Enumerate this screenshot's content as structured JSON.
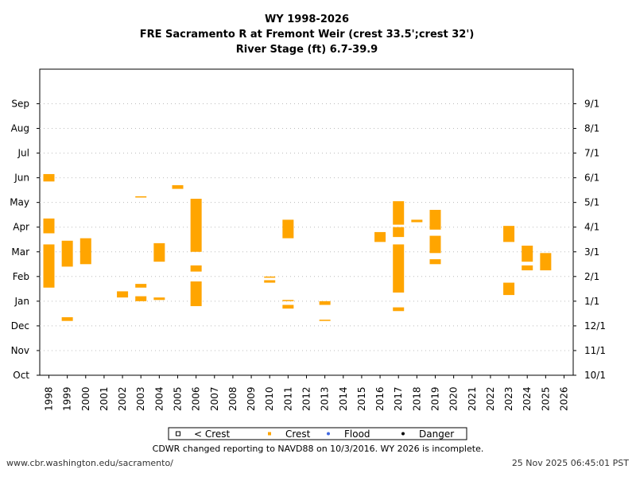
{
  "chart_data": {
    "type": "bar",
    "title": [
      "WY 1998-2026",
      "FRE Sacramento R at Fremont Weir (crest 33.5';crest 32')",
      "River Stage (ft) 6.7-39.9"
    ],
    "categories": [
      "1998",
      "1999",
      "2000",
      "2001",
      "2002",
      "2003",
      "2004",
      "2005",
      "2006",
      "2007",
      "2008",
      "2009",
      "2010",
      "2011",
      "2012",
      "2013",
      "2014",
      "2015",
      "2016",
      "2017",
      "2018",
      "2019",
      "2020",
      "2021",
      "2022",
      "2023",
      "2024",
      "2025",
      "2026"
    ],
    "y_left_ticks": [
      {
        "label": "Oct",
        "month": 0
      },
      {
        "label": "Nov",
        "month": 1
      },
      {
        "label": "Dec",
        "month": 2
      },
      {
        "label": "Jan",
        "month": 3
      },
      {
        "label": "Feb",
        "month": 4
      },
      {
        "label": "Mar",
        "month": 5
      },
      {
        "label": "Apr",
        "month": 6
      },
      {
        "label": "May",
        "month": 7
      },
      {
        "label": "Jun",
        "month": 8
      },
      {
        "label": "Jul",
        "month": 9
      },
      {
        "label": "Aug",
        "month": 10
      },
      {
        "label": "Sep",
        "month": 11
      }
    ],
    "y_right_ticks": [
      {
        "label": "10/1",
        "month": 0
      },
      {
        "label": "11/1",
        "month": 1
      },
      {
        "label": "12/1",
        "month": 2
      },
      {
        "label": "1/1",
        "month": 3
      },
      {
        "label": "2/1",
        "month": 4
      },
      {
        "label": "3/1",
        "month": 5
      },
      {
        "label": "4/1",
        "month": 6
      },
      {
        "label": "5/1",
        "month": 7
      },
      {
        "label": "6/1",
        "month": 8
      },
      {
        "label": "7/1",
        "month": 9
      },
      {
        "label": "8/1",
        "month": 10
      },
      {
        "label": "9/1",
        "month": 11
      }
    ],
    "y_range_months": [
      0,
      12.4
    ],
    "grid": true,
    "legend": [
      {
        "label": "< Crest",
        "marker": "hollow-square",
        "color": "#000000"
      },
      {
        "label": "Crest",
        "marker": "square",
        "color": "#ffa500"
      },
      {
        "label": "Flood",
        "marker": "dot",
        "color": "#4169e1"
      },
      {
        "label": "Danger",
        "marker": "dot",
        "color": "#000000"
      }
    ],
    "legend_position": "bottom-center",
    "series": [
      {
        "name": "Crest",
        "color": "#ffa500",
        "intervals": [
          {
            "year": "1998",
            "start": 7.85,
            "end": 8.1
          },
          {
            "year": "1998",
            "start": 8.1,
            "end": 8.15
          },
          {
            "year": "1998",
            "start": 5.75,
            "end": 6.35
          },
          {
            "year": "1998",
            "start": 3.55,
            "end": 5.3
          },
          {
            "year": "1999",
            "start": 4.4,
            "end": 5.45
          },
          {
            "year": "1999",
            "start": 2.2,
            "end": 2.35
          },
          {
            "year": "2000",
            "start": 4.5,
            "end": 5.55
          },
          {
            "year": "2002",
            "start": 3.15,
            "end": 3.4
          },
          {
            "year": "2003",
            "start": 7.2,
            "end": 7.25
          },
          {
            "year": "2003",
            "start": 3.55,
            "end": 3.7
          },
          {
            "year": "2003",
            "start": 3.0,
            "end": 3.2
          },
          {
            "year": "2004",
            "start": 4.6,
            "end": 5.35
          },
          {
            "year": "2004",
            "start": 3.05,
            "end": 3.15
          },
          {
            "year": "2005",
            "start": 7.55,
            "end": 7.7
          },
          {
            "year": "2006",
            "start": 5.0,
            "end": 7.15
          },
          {
            "year": "2006",
            "start": 4.2,
            "end": 4.45
          },
          {
            "year": "2006",
            "start": 2.8,
            "end": 3.8
          },
          {
            "year": "2010",
            "start": 3.75,
            "end": 3.85
          },
          {
            "year": "2010",
            "start": 3.95,
            "end": 4.0
          },
          {
            "year": "2011",
            "start": 5.55,
            "end": 6.3
          },
          {
            "year": "2011",
            "start": 2.7,
            "end": 2.85
          },
          {
            "year": "2011",
            "start": 3.0,
            "end": 3.05
          },
          {
            "year": "2013",
            "start": 2.85,
            "end": 3.0
          },
          {
            "year": "2013",
            "start": 2.2,
            "end": 2.25
          },
          {
            "year": "2016",
            "start": 5.4,
            "end": 5.8
          },
          {
            "year": "2017",
            "start": 6.1,
            "end": 7.05
          },
          {
            "year": "2017",
            "start": 5.6,
            "end": 6.0
          },
          {
            "year": "2017",
            "start": 3.35,
            "end": 5.3
          },
          {
            "year": "2017",
            "start": 2.6,
            "end": 2.75
          },
          {
            "year": "2018",
            "start": 6.2,
            "end": 6.3
          },
          {
            "year": "2019",
            "start": 5.9,
            "end": 6.7
          },
          {
            "year": "2019",
            "start": 4.95,
            "end": 5.65
          },
          {
            "year": "2019",
            "start": 4.5,
            "end": 4.7
          },
          {
            "year": "2023",
            "start": 5.4,
            "end": 6.05
          },
          {
            "year": "2023",
            "start": 3.25,
            "end": 3.75
          },
          {
            "year": "2024",
            "start": 4.6,
            "end": 5.25
          },
          {
            "year": "2024",
            "start": 4.25,
            "end": 4.45
          },
          {
            "year": "2025",
            "start": 4.25,
            "end": 4.95
          }
        ]
      }
    ],
    "note": "CDWR changed reporting to NAVD88 on 10/3/2016. WY 2026 is incomplete."
  },
  "footer": {
    "source_url": "www.cbr.washington.edu/sacramento/",
    "timestamp": "25 Nov 2025 06:45:01 PST"
  },
  "colors": {
    "crest": "#ffa500",
    "grid": "#bbbbbb",
    "axis": "#000000"
  }
}
